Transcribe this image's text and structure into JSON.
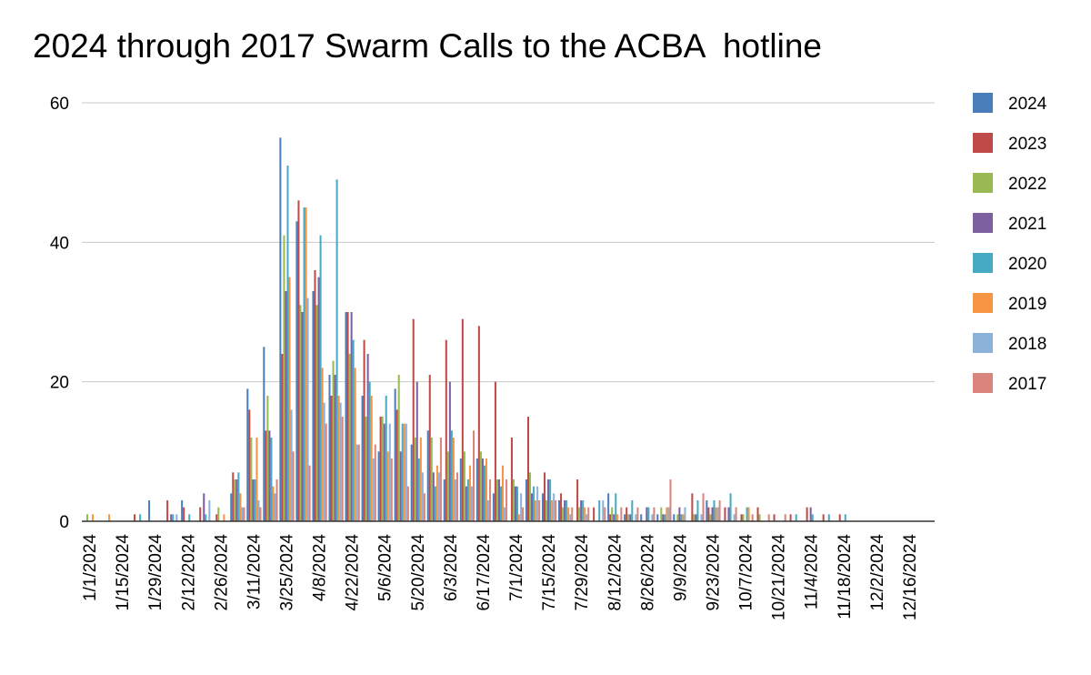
{
  "chart_data": {
    "type": "bar",
    "title": "2024 through 2017 Swarm Calls to the ACBA  hotline",
    "xlabel": "",
    "ylabel": "",
    "ylim": [
      0,
      60
    ],
    "yticks": [
      "0",
      "20",
      "40",
      "60"
    ],
    "grid": true,
    "legend_position": "right",
    "categories": [
      "1/1/2024",
      "1/8/2024",
      "1/15/2024",
      "1/22/2024",
      "1/29/2024",
      "2/5/2024",
      "2/12/2024",
      "2/19/2024",
      "2/26/2024",
      "3/4/2024",
      "3/11/2024",
      "3/18/2024",
      "3/25/2024",
      "4/1/2024",
      "4/8/2024",
      "4/15/2024",
      "4/22/2024",
      "4/29/2024",
      "5/6/2024",
      "5/13/2024",
      "5/20/2024",
      "5/27/2024",
      "6/3/2024",
      "6/10/2024",
      "6/17/2024",
      "6/24/2024",
      "7/1/2024",
      "7/8/2024",
      "7/15/2024",
      "7/22/2024",
      "7/29/2024",
      "8/5/2024",
      "8/12/2024",
      "8/19/2024",
      "8/26/2024",
      "9/2/2024",
      "9/9/2024",
      "9/16/2024",
      "9/23/2024",
      "9/30/2024",
      "10/7/2024",
      "10/14/2024",
      "10/21/2024",
      "10/28/2024",
      "11/4/2024",
      "11/11/2024",
      "11/18/2024",
      "11/25/2024",
      "12/2/2024",
      "12/9/2024",
      "12/16/2024",
      "12/23/2024"
    ],
    "x_tick_labels": [
      "1/1/2024",
      "1/15/2024",
      "1/29/2024",
      "2/12/2024",
      "2/26/2024",
      "3/11/2024",
      "3/25/2024",
      "4/8/2024",
      "4/22/2024",
      "5/6/2024",
      "5/20/2024",
      "6/3/2024",
      "6/17/2024",
      "7/1/2024",
      "7/15/2024",
      "7/29/2024",
      "8/12/2024",
      "8/26/2024",
      "9/9/2024",
      "9/23/2024",
      "10/7/2024",
      "10/21/2024",
      "11/4/2024",
      "11/18/2024",
      "12/2/2024",
      "12/16/2024"
    ],
    "series": [
      {
        "name": "2024",
        "color": "#4a7ebb",
        "values": [
          0,
          0,
          0,
          0,
          3,
          0,
          3,
          0,
          0,
          4,
          19,
          25,
          55,
          43,
          33,
          21,
          30,
          18,
          10,
          19,
          11,
          13,
          6,
          9,
          9,
          4,
          0,
          6,
          4,
          3,
          0,
          0,
          4,
          1,
          1,
          1,
          1,
          0,
          3,
          0,
          0,
          0,
          0,
          0,
          0,
          0,
          0,
          0,
          0,
          0,
          0,
          0
        ]
      },
      {
        "name": "2023",
        "color": "#be4b48",
        "values": [
          0,
          0,
          0,
          1,
          0,
          3,
          2,
          2,
          1,
          7,
          16,
          13,
          24,
          46,
          36,
          18,
          30,
          26,
          15,
          16,
          29,
          21,
          26,
          29,
          28,
          20,
          12,
          15,
          7,
          4,
          6,
          2,
          1,
          2,
          0,
          0,
          0,
          4,
          2,
          2,
          1,
          2,
          1,
          1,
          2,
          1,
          1,
          0,
          0,
          0,
          0,
          0
        ]
      },
      {
        "name": "2022",
        "color": "#98b954",
        "values": [
          1,
          0,
          0,
          0,
          0,
          0,
          0,
          0,
          2,
          6,
          12,
          18,
          41,
          31,
          31,
          23,
          24,
          15,
          15,
          21,
          12,
          12,
          10,
          10,
          10,
          6,
          6,
          7,
          3,
          2,
          2,
          0,
          2,
          1,
          0,
          2,
          1,
          1,
          1,
          0,
          1,
          1,
          0,
          0,
          0,
          0,
          0,
          0,
          0,
          0,
          0,
          0
        ]
      },
      {
        "name": "2021",
        "color": "#7d60a0",
        "values": [
          0,
          0,
          0,
          0,
          0,
          1,
          0,
          4,
          0,
          6,
          6,
          13,
          33,
          30,
          35,
          21,
          30,
          24,
          14,
          10,
          20,
          7,
          20,
          5,
          9,
          6,
          5,
          4,
          6,
          3,
          3,
          0,
          1,
          1,
          2,
          1,
          2,
          1,
          2,
          2,
          0,
          0,
          0,
          0,
          2,
          0,
          0,
          0,
          0,
          0,
          0,
          0
        ]
      },
      {
        "name": "2020",
        "color": "#46aac4",
        "values": [
          0,
          0,
          0,
          1,
          0,
          1,
          1,
          1,
          0,
          7,
          6,
          12,
          51,
          45,
          41,
          49,
          26,
          20,
          18,
          14,
          9,
          5,
          13,
          6,
          8,
          5,
          5,
          5,
          6,
          3,
          3,
          3,
          4,
          3,
          2,
          1,
          1,
          3,
          3,
          4,
          2,
          0,
          0,
          1,
          1,
          1,
          1,
          0,
          0,
          0,
          0,
          0
        ]
      },
      {
        "name": "2019",
        "color": "#f69544",
        "values": [
          1,
          1,
          0,
          0,
          0,
          0,
          0,
          0,
          1,
          4,
          12,
          5,
          35,
          45,
          22,
          18,
          22,
          18,
          10,
          14,
          12,
          8,
          12,
          8,
          9,
          8,
          1,
          3,
          3,
          2,
          2,
          0,
          1,
          0,
          0,
          2,
          1,
          0,
          2,
          0,
          2,
          0,
          0,
          0,
          0,
          0,
          0,
          0,
          0,
          0,
          0,
          0
        ]
      },
      {
        "name": "2018",
        "color": "#8db2d9",
        "values": [
          0,
          0,
          0,
          0,
          0,
          1,
          0,
          3,
          0,
          2,
          3,
          4,
          16,
          32,
          17,
          17,
          11,
          9,
          14,
          14,
          7,
          7,
          6,
          5,
          3,
          2,
          4,
          5,
          4,
          1,
          1,
          3,
          0,
          1,
          1,
          2,
          2,
          1,
          2,
          1,
          0,
          0,
          0,
          0,
          0,
          0,
          0,
          0,
          0,
          0,
          0,
          0
        ]
      },
      {
        "name": "2017",
        "color": "#d9847c",
        "values": [
          0,
          0,
          0,
          0,
          0,
          0,
          0,
          0,
          0,
          2,
          2,
          6,
          10,
          8,
          14,
          15,
          11,
          11,
          9,
          5,
          4,
          12,
          7,
          13,
          6,
          6,
          2,
          3,
          3,
          2,
          2,
          2,
          2,
          2,
          2,
          6,
          0,
          4,
          3,
          2,
          1,
          1,
          1,
          0,
          0,
          0,
          0,
          0,
          0,
          0,
          0,
          0
        ]
      }
    ]
  }
}
